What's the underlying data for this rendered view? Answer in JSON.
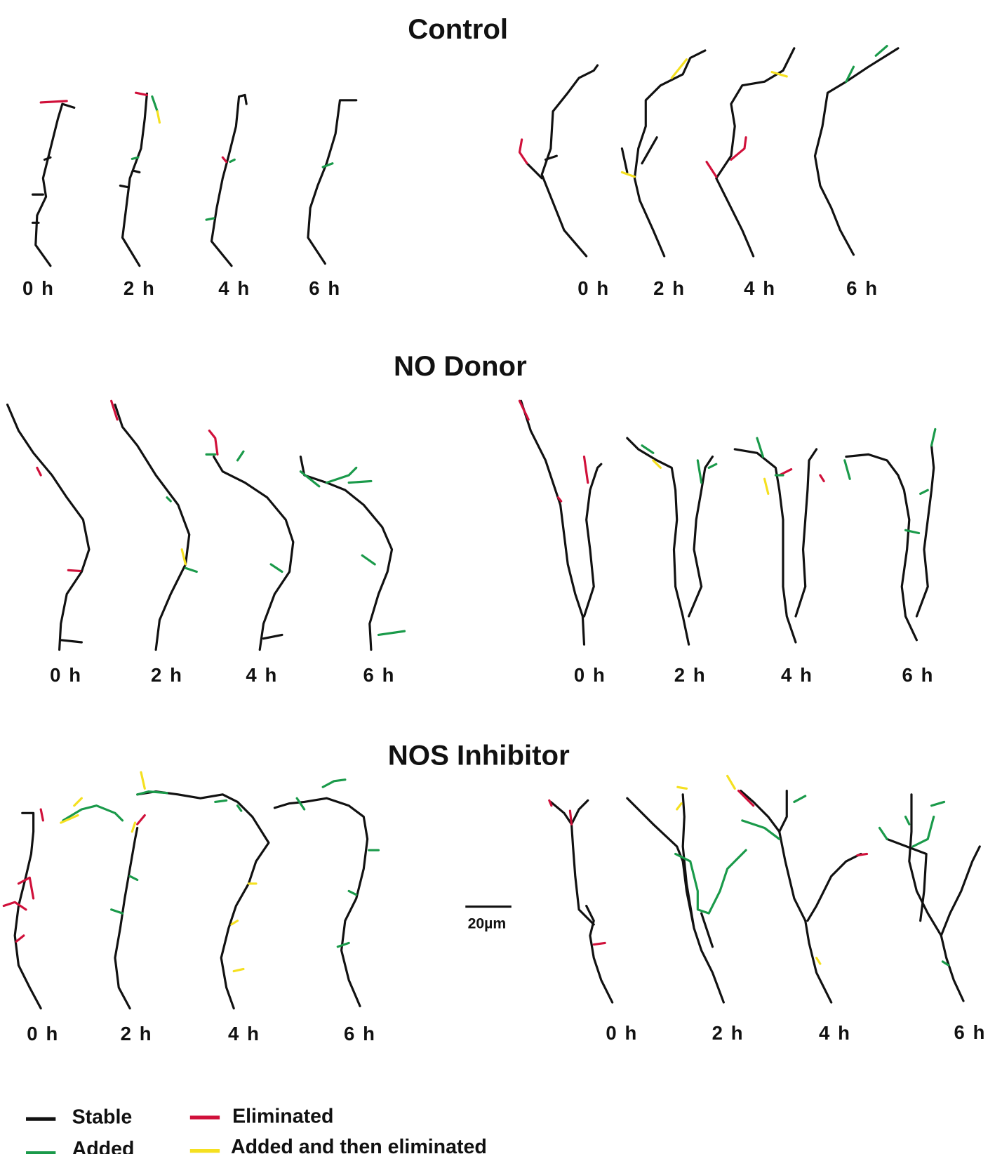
{
  "colors": {
    "stable": "#111111",
    "added": "#1a9a4a",
    "eliminated": "#d0103a",
    "added_then_eliminated": "#f5e020"
  },
  "sections": [
    {
      "title": "Control",
      "left_times": [
        "0 h",
        "2 h",
        "4 h",
        "6 h"
      ],
      "right_times": [
        "0 h",
        "2 h",
        "4 h",
        "6 h"
      ]
    },
    {
      "title": "NO Donor",
      "left_times": [
        "0 h",
        "2 h",
        "4 h",
        "6 h"
      ],
      "right_times": [
        "0 h",
        "2 h",
        "4 h",
        "6 h"
      ]
    },
    {
      "title": "NOS Inhibitor",
      "left_times": [
        "0 h",
        "2 h",
        "4 h",
        "6 h"
      ],
      "right_times": [
        "0 h",
        "2 h",
        "4 h",
        "6 h"
      ]
    }
  ],
  "scale_bar": {
    "label": "20µm"
  },
  "legend": [
    {
      "label": "Stable",
      "color_key": "stable"
    },
    {
      "label": "Eliminated",
      "color_key": "eliminated"
    },
    {
      "label": "Added",
      "color_key": "added"
    },
    {
      "label": "Added and then eliminated",
      "color_key": "added_then_eliminated"
    }
  ]
}
